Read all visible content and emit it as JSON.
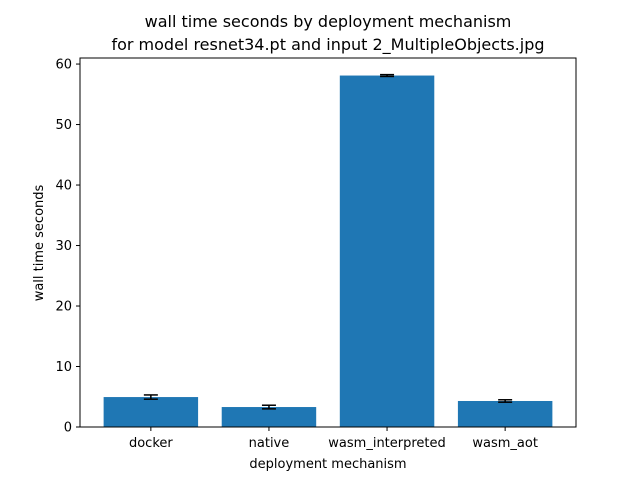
{
  "chart_data": {
    "type": "bar",
    "title": "wall time seconds by deployment mechanism",
    "subtitle": "for model resnet34.pt and input 2_MultipleObjects.jpg",
    "xlabel": "deployment mechanism",
    "ylabel": "wall time seconds",
    "categories": [
      "docker",
      "native",
      "wasm_interpreted",
      "wasm_aot"
    ],
    "values": [
      4.95,
      3.3,
      58.1,
      4.3
    ],
    "errors": [
      0.35,
      0.3,
      0.15,
      0.2
    ],
    "ylim": [
      0,
      61
    ],
    "yticks": [
      0,
      10,
      20,
      30,
      40,
      50,
      60
    ],
    "grid": false,
    "bar_color": "#1f77b4",
    "error_color": "#000000"
  }
}
